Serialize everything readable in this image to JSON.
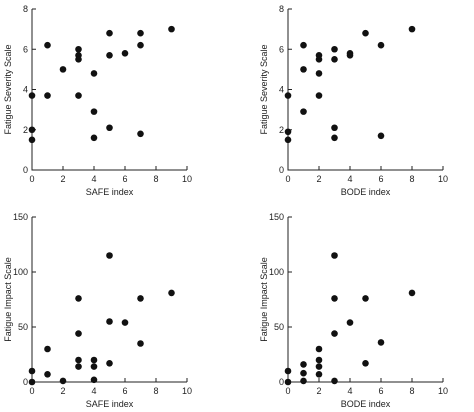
{
  "chart_data": [
    {
      "type": "scatter",
      "xlabel": "SAFE index",
      "ylabel": "Fatigue Severity Scale",
      "xlim": [
        0,
        10
      ],
      "ylim": [
        0,
        8
      ],
      "xticks": [
        "0",
        "2",
        "4",
        "6",
        "8",
        "10"
      ],
      "yticks": [
        "0",
        "2",
        "4",
        "6",
        "8"
      ],
      "points": [
        {
          "x": 0,
          "y": 3.7
        },
        {
          "x": 0,
          "y": 2.0
        },
        {
          "x": 0,
          "y": 1.5
        },
        {
          "x": 1,
          "y": 6.2
        },
        {
          "x": 1,
          "y": 3.7
        },
        {
          "x": 2,
          "y": 5.0
        },
        {
          "x": 3,
          "y": 6.0
        },
        {
          "x": 3,
          "y": 5.7
        },
        {
          "x": 3,
          "y": 5.5
        },
        {
          "x": 3,
          "y": 3.7
        },
        {
          "x": 4,
          "y": 4.8
        },
        {
          "x": 4,
          "y": 2.9
        },
        {
          "x": 4,
          "y": 1.6
        },
        {
          "x": 5,
          "y": 6.8
        },
        {
          "x": 5,
          "y": 5.7
        },
        {
          "x": 5,
          "y": 2.1
        },
        {
          "x": 6,
          "y": 5.8
        },
        {
          "x": 7,
          "y": 6.8
        },
        {
          "x": 7,
          "y": 6.2
        },
        {
          "x": 7,
          "y": 1.8
        },
        {
          "x": 9,
          "y": 7.0
        }
      ]
    },
    {
      "type": "scatter",
      "xlabel": "BODE index",
      "ylabel": "Fatigue Severity Scale",
      "xlim": [
        0,
        10
      ],
      "ylim": [
        0,
        8
      ],
      "xticks": [
        "0",
        "2",
        "4",
        "6",
        "8",
        "10"
      ],
      "yticks": [
        "0",
        "2",
        "4",
        "6",
        "8"
      ],
      "points": [
        {
          "x": 0,
          "y": 3.7
        },
        {
          "x": 0,
          "y": 1.9
        },
        {
          "x": 0,
          "y": 1.5
        },
        {
          "x": 1,
          "y": 6.2
        },
        {
          "x": 1,
          "y": 5.0
        },
        {
          "x": 1,
          "y": 2.9
        },
        {
          "x": 2,
          "y": 5.7
        },
        {
          "x": 2,
          "y": 5.5
        },
        {
          "x": 2,
          "y": 4.8
        },
        {
          "x": 2,
          "y": 3.7
        },
        {
          "x": 3,
          "y": 6.0
        },
        {
          "x": 3,
          "y": 5.5
        },
        {
          "x": 3,
          "y": 2.1
        },
        {
          "x": 3,
          "y": 1.6
        },
        {
          "x": 4,
          "y": 5.8
        },
        {
          "x": 4,
          "y": 5.7
        },
        {
          "x": 5,
          "y": 6.8
        },
        {
          "x": 6,
          "y": 6.2
        },
        {
          "x": 6,
          "y": 1.7
        },
        {
          "x": 8,
          "y": 7.0
        }
      ]
    },
    {
      "type": "scatter",
      "xlabel": "SAFE index",
      "ylabel": "Fatigue Impact Scale",
      "xlim": [
        0,
        10
      ],
      "ylim": [
        0,
        150
      ],
      "xticks": [
        "0",
        "2",
        "4",
        "6",
        "8",
        "10"
      ],
      "yticks": [
        "0",
        "50",
        "100",
        "150"
      ],
      "points": [
        {
          "x": 0,
          "y": 10
        },
        {
          "x": 0,
          "y": 0
        },
        {
          "x": 1,
          "y": 30
        },
        {
          "x": 1,
          "y": 7
        },
        {
          "x": 2,
          "y": 1
        },
        {
          "x": 3,
          "y": 76
        },
        {
          "x": 3,
          "y": 44
        },
        {
          "x": 3,
          "y": 20
        },
        {
          "x": 3,
          "y": 14
        },
        {
          "x": 4,
          "y": 20
        },
        {
          "x": 4,
          "y": 14
        },
        {
          "x": 4,
          "y": 2
        },
        {
          "x": 5,
          "y": 115
        },
        {
          "x": 5,
          "y": 55
        },
        {
          "x": 5,
          "y": 17
        },
        {
          "x": 6,
          "y": 54
        },
        {
          "x": 7,
          "y": 76
        },
        {
          "x": 7,
          "y": 35
        },
        {
          "x": 9,
          "y": 81
        }
      ]
    },
    {
      "type": "scatter",
      "xlabel": "BODE index",
      "ylabel": "Fatigue Impact Scale",
      "xlim": [
        0,
        10
      ],
      "ylim": [
        0,
        150
      ],
      "xticks": [
        "0",
        "2",
        "4",
        "6",
        "8",
        "10"
      ],
      "yticks": [
        "0",
        "50",
        "100",
        "150"
      ],
      "points": [
        {
          "x": 0,
          "y": 10
        },
        {
          "x": 0,
          "y": 0
        },
        {
          "x": 1,
          "y": 16
        },
        {
          "x": 1,
          "y": 8
        },
        {
          "x": 1,
          "y": 1
        },
        {
          "x": 2,
          "y": 30
        },
        {
          "x": 2,
          "y": 20
        },
        {
          "x": 2,
          "y": 14
        },
        {
          "x": 2,
          "y": 7
        },
        {
          "x": 3,
          "y": 115
        },
        {
          "x": 3,
          "y": 76
        },
        {
          "x": 3,
          "y": 44
        },
        {
          "x": 3,
          "y": 1
        },
        {
          "x": 4,
          "y": 54
        },
        {
          "x": 5,
          "y": 76
        },
        {
          "x": 5,
          "y": 17
        },
        {
          "x": 6,
          "y": 36
        },
        {
          "x": 8,
          "y": 81
        }
      ]
    }
  ]
}
